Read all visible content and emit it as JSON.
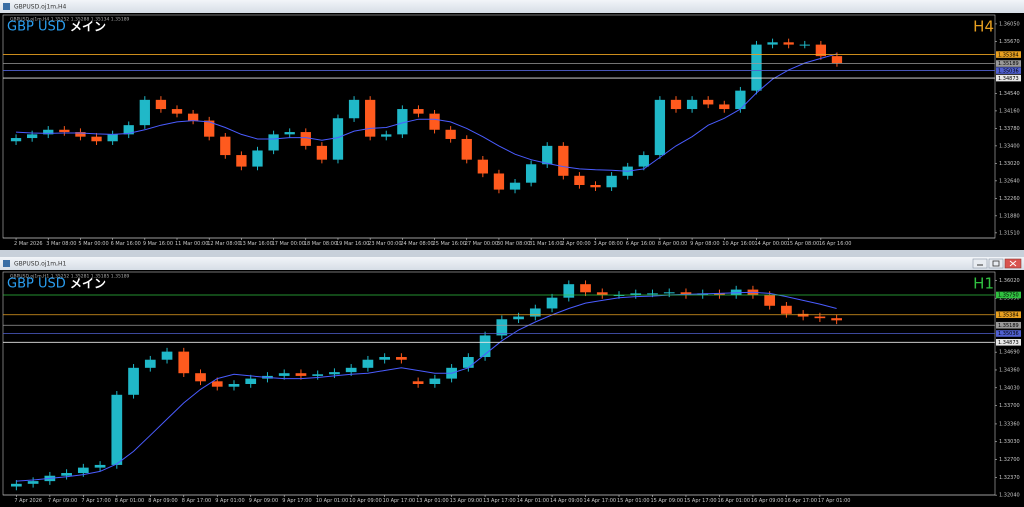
{
  "windows": [
    {
      "title": "GBPUSD.oj1m,H4"
    },
    {
      "title": "GBPUSD.oj1m,H1"
    }
  ],
  "chart_data": [
    {
      "type": "candlestick",
      "info": "GBPUSD.oj1m,H4  1.35252 1.35288 1.35134 1.35189",
      "symbol": "GBP USD",
      "subtitle": "メイン",
      "timeframe": "H4",
      "timeframe_color": "#e8a020",
      "bull_color": "#20b8c8",
      "bear_color": "#ff5a1e",
      "categories": [
        "2 Mar 2026",
        null,
        "3 Mar 08:00",
        null,
        "5 Mar 00:00",
        null,
        "6 Mar 16:00",
        null,
        "9 Mar 16:00",
        null,
        "11 Mar 00:00",
        null,
        "12 Mar 08:00",
        null,
        "13 Mar 16:00",
        null,
        "17 Mar 00:00",
        null,
        "18 Mar 08:00",
        null,
        "19 Mar 16:00",
        null,
        "23 Mar 00:00",
        null,
        "24 Mar 08:00",
        null,
        "25 Mar 16:00",
        null,
        "27 Mar 00:00",
        null,
        "30 Mar 08:00",
        null,
        "31 Mar 16:00",
        null,
        "2 Apr 00:00",
        null,
        "3 Apr 08:00",
        null,
        "6 Apr 16:00",
        null,
        "8 Apr 00:00",
        null,
        "9 Apr 08:00",
        null,
        "10 Apr 16:00",
        null,
        "14 Apr 00:00",
        null,
        "15 Apr 08:00",
        null,
        "16 Apr 16:00",
        null
      ],
      "open": [
        1.335,
        1.3357,
        1.3365,
        1.3375,
        1.337,
        1.336,
        1.335,
        1.3365,
        1.3385,
        1.344,
        1.342,
        1.341,
        1.3395,
        1.336,
        1.332,
        1.3295,
        1.333,
        1.3365,
        1.337,
        1.334,
        1.331,
        1.34,
        1.344,
        1.336,
        1.3365,
        1.342,
        1.341,
        1.3375,
        1.3355,
        1.331,
        1.328,
        1.3245,
        1.326,
        1.33,
        1.334,
        1.3275,
        1.3255,
        1.325,
        1.3275,
        1.3295,
        1.332,
        1.344,
        1.342,
        1.344,
        1.343,
        1.342,
        1.346,
        1.356,
        1.3565,
        1.356,
        1.356,
        1.3535
      ],
      "high": [
        1.3365,
        1.3373,
        1.3383,
        1.3383,
        1.3378,
        1.3368,
        1.3373,
        1.3393,
        1.3448,
        1.3448,
        1.3428,
        1.3418,
        1.3403,
        1.3368,
        1.3328,
        1.3338,
        1.3373,
        1.3378,
        1.3378,
        1.3348,
        1.3408,
        1.3448,
        1.3448,
        1.3373,
        1.3428,
        1.3428,
        1.3418,
        1.3383,
        1.3363,
        1.3318,
        1.3288,
        1.3268,
        1.3308,
        1.3348,
        1.3348,
        1.3283,
        1.3263,
        1.3283,
        1.3303,
        1.3328,
        1.3448,
        1.3448,
        1.3448,
        1.3448,
        1.3438,
        1.3468,
        1.3568,
        1.3573,
        1.3573,
        1.3568,
        1.3568,
        1.3543
      ],
      "low": [
        1.3342,
        1.3349,
        1.3357,
        1.3362,
        1.3352,
        1.3342,
        1.3342,
        1.3357,
        1.3377,
        1.3412,
        1.3402,
        1.3387,
        1.3352,
        1.3312,
        1.3287,
        1.3287,
        1.3322,
        1.3357,
        1.3332,
        1.3302,
        1.3302,
        1.3392,
        1.3352,
        1.3352,
        1.3357,
        1.3402,
        1.3367,
        1.3347,
        1.3302,
        1.3272,
        1.3237,
        1.3237,
        1.3252,
        1.3292,
        1.3267,
        1.3247,
        1.3242,
        1.3242,
        1.3267,
        1.3287,
        1.3312,
        1.3412,
        1.3412,
        1.3422,
        1.3412,
        1.3412,
        1.3452,
        1.3552,
        1.3552,
        1.3552,
        1.3527,
        1.3512
      ],
      "close": [
        1.3357,
        1.3365,
        1.3375,
        1.337,
        1.336,
        1.335,
        1.3365,
        1.3385,
        1.344,
        1.342,
        1.341,
        1.3395,
        1.336,
        1.332,
        1.3295,
        1.333,
        1.3365,
        1.337,
        1.334,
        1.331,
        1.34,
        1.344,
        1.336,
        1.3365,
        1.342,
        1.341,
        1.3375,
        1.3355,
        1.331,
        1.328,
        1.3245,
        1.326,
        1.33,
        1.334,
        1.3275,
        1.3255,
        1.325,
        1.3275,
        1.3295,
        1.332,
        1.344,
        1.342,
        1.344,
        1.343,
        1.342,
        1.346,
        1.356,
        1.3565,
        1.356,
        1.356,
        1.3535,
        1.352
      ],
      "ma": {
        "color": "#4a5cff",
        "values": [
          1.337,
          1.3368,
          1.3367,
          1.3368,
          1.3368,
          1.3366,
          1.3365,
          1.3367,
          1.3375,
          1.3385,
          1.3392,
          1.3395,
          1.3392,
          1.338,
          1.3365,
          1.3355,
          1.3355,
          1.3358,
          1.3358,
          1.3352,
          1.3358,
          1.3372,
          1.3378,
          1.338,
          1.339,
          1.3398,
          1.3398,
          1.3392,
          1.3378,
          1.336,
          1.334,
          1.3322,
          1.331,
          1.3302,
          1.3295,
          1.329,
          1.3288,
          1.3287,
          1.3285,
          1.329,
          1.3315,
          1.334,
          1.336,
          1.3385,
          1.34,
          1.342,
          1.3455,
          1.3485,
          1.3505,
          1.352,
          1.353,
          1.354
        ]
      },
      "levels": [
        {
          "value": 1.35384,
          "color": "#e8a020"
        },
        {
          "value": 1.35189,
          "color": "#9a9a9a"
        },
        {
          "value": 1.35036,
          "color": "#5060d0"
        },
        {
          "value": 1.34873,
          "color": "#e8e8e8"
        }
      ],
      "ylim": [
        1.3142,
        1.362
      ],
      "yticks": [
        {
          "value": 1.3605,
          "label": "1.36050"
        },
        {
          "value": 1.3567,
          "label": "1.35670"
        },
        {
          "value": 1.3454,
          "label": "1.34540"
        },
        {
          "value": 1.3416,
          "label": "1.34160"
        },
        {
          "value": 1.3378,
          "label": "1.33780"
        },
        {
          "value": 1.334,
          "label": "1.33400"
        },
        {
          "value": 1.3302,
          "label": "1.33020"
        },
        {
          "value": 1.3264,
          "label": "1.32640"
        },
        {
          "value": 1.3226,
          "label": "1.32260"
        },
        {
          "value": 1.3188,
          "label": "1.31880"
        },
        {
          "value": 1.3151,
          "label": "1.31510"
        }
      ]
    },
    {
      "type": "candlestick",
      "info": "GBPUSD.oj1m,H1  1.35252 1.35281 1.35185 1.35189",
      "symbol": "GBP USD",
      "subtitle": "メイン",
      "timeframe": "H1",
      "timeframe_color": "#30c040",
      "bull_color": "#20b8c8",
      "bear_color": "#ff5a1e",
      "categories": [
        "7 Apr 2026",
        null,
        "7 Apr 09:00",
        null,
        "7 Apr 17:00",
        null,
        "8 Apr 01:00",
        null,
        "8 Apr 09:00",
        null,
        "8 Apr 17:00",
        null,
        "9 Apr 01:00",
        null,
        "9 Apr 09:00",
        null,
        "9 Apr 17:00",
        null,
        "10 Apr 01:00",
        null,
        "10 Apr 09:00",
        null,
        "10 Apr 17:00",
        null,
        "13 Apr 01:00",
        null,
        "13 Apr 09:00",
        null,
        "13 Apr 17:00",
        null,
        "14 Apr 01:00",
        null,
        "14 Apr 09:00",
        null,
        "14 Apr 17:00",
        null,
        "15 Apr 01:00",
        null,
        "15 Apr 09:00",
        null,
        "15 Apr 17:00",
        null,
        "16 Apr 01:00",
        null,
        "16 Apr 09:00",
        null,
        "16 Apr 17:00",
        null,
        "17 Apr 01:00",
        null
      ],
      "open": [
        1.322,
        1.3225,
        1.323,
        1.324,
        1.3245,
        1.3255,
        1.326,
        1.339,
        1.344,
        1.3455,
        1.347,
        1.343,
        1.3415,
        1.3405,
        1.341,
        1.342,
        1.3425,
        1.343,
        1.3425,
        1.3428,
        1.3432,
        1.344,
        1.3455,
        1.346,
        1.3415,
        1.341,
        1.342,
        1.344,
        1.346,
        1.35,
        1.353,
        1.3535,
        1.355,
        1.357,
        1.3595,
        1.358,
        1.3575,
        1.3575,
        1.3578,
        1.3578,
        1.358,
        1.3575,
        1.3578,
        1.3575,
        1.3585,
        1.3575,
        1.3555,
        1.354,
        1.3535,
        1.3532
      ],
      "high": [
        1.3232,
        1.3237,
        1.3247,
        1.3252,
        1.3262,
        1.3267,
        1.3397,
        1.3447,
        1.3462,
        1.3477,
        1.3477,
        1.3437,
        1.3422,
        1.3417,
        1.3427,
        1.3432,
        1.3437,
        1.3437,
        1.3435,
        1.3439,
        1.3447,
        1.3462,
        1.3467,
        1.3467,
        1.3422,
        1.3427,
        1.3447,
        1.3467,
        1.3507,
        1.3537,
        1.3542,
        1.3557,
        1.3577,
        1.3602,
        1.3602,
        1.3587,
        1.3582,
        1.3585,
        1.3585,
        1.3587,
        1.3587,
        1.3585,
        1.3585,
        1.3592,
        1.3592,
        1.3582,
        1.3562,
        1.3547,
        1.3542,
        1.3539
      ],
      "low": [
        1.3213,
        1.3218,
        1.3223,
        1.3233,
        1.3238,
        1.3248,
        1.3253,
        1.3383,
        1.3433,
        1.3448,
        1.3423,
        1.3408,
        1.3398,
        1.3398,
        1.3403,
        1.3413,
        1.3418,
        1.3418,
        1.3418,
        1.3421,
        1.3425,
        1.3433,
        1.3448,
        1.3448,
        1.3403,
        1.3403,
        1.3413,
        1.3433,
        1.3453,
        1.3493,
        1.3523,
        1.3528,
        1.3543,
        1.3563,
        1.3573,
        1.3568,
        1.3568,
        1.3568,
        1.3571,
        1.3571,
        1.3568,
        1.3568,
        1.3568,
        1.3568,
        1.3568,
        1.3548,
        1.3533,
        1.3528,
        1.3525,
        1.3521
      ],
      "close": [
        1.3225,
        1.323,
        1.324,
        1.3245,
        1.3255,
        1.326,
        1.339,
        1.344,
        1.3455,
        1.347,
        1.343,
        1.3415,
        1.3405,
        1.341,
        1.342,
        1.3425,
        1.343,
        1.3425,
        1.3428,
        1.3432,
        1.344,
        1.3455,
        1.346,
        1.3455,
        1.341,
        1.342,
        1.344,
        1.346,
        1.35,
        1.353,
        1.3535,
        1.355,
        1.357,
        1.3595,
        1.358,
        1.3575,
        1.3575,
        1.3578,
        1.3578,
        1.358,
        1.3575,
        1.3578,
        1.3575,
        1.3585,
        1.3575,
        1.3555,
        1.354,
        1.3535,
        1.3532,
        1.3528
      ],
      "ma": {
        "color": "#4a5cff",
        "values": [
          1.323,
          1.3232,
          1.3235,
          1.3238,
          1.3242,
          1.3248,
          1.3262,
          1.3285,
          1.3315,
          1.3345,
          1.3375,
          1.34,
          1.342,
          1.3428,
          1.3425,
          1.3422,
          1.342,
          1.342,
          1.3422,
          1.3425,
          1.3428,
          1.343,
          1.3435,
          1.344,
          1.3435,
          1.343,
          1.343,
          1.344,
          1.3465,
          1.349,
          1.351,
          1.3525,
          1.3538,
          1.355,
          1.356,
          1.3565,
          1.357,
          1.3572,
          1.3573,
          1.3575,
          1.3576,
          1.3577,
          1.3578,
          1.3579,
          1.358,
          1.3578,
          1.3572,
          1.3565,
          1.3558,
          1.355
        ]
      },
      "levels": [
        {
          "value": 1.3575,
          "label": "1.35750",
          "color": "#30c040"
        },
        {
          "value": 1.35384,
          "color": "#e8a020"
        },
        {
          "value": 1.35189,
          "color": "#9a9a9a"
        },
        {
          "value": 1.35036,
          "color": "#5060d0"
        },
        {
          "value": 1.34873,
          "color": "#e8e8e8"
        }
      ],
      "ylim": [
        1.3195,
        1.3625
      ],
      "yticks": [
        {
          "value": 1.3602,
          "label": "1.36020"
        },
        {
          "value": 1.3569,
          "label": "1.35690"
        },
        {
          "value": 1.3469,
          "label": "1.34690"
        },
        {
          "value": 1.3436,
          "label": "1.34360"
        },
        {
          "value": 1.3403,
          "label": "1.34030"
        },
        {
          "value": 1.337,
          "label": "1.33700"
        },
        {
          "value": 1.3336,
          "label": "1.33360"
        },
        {
          "value": 1.3303,
          "label": "1.33030"
        },
        {
          "value": 1.327,
          "label": "1.32700"
        },
        {
          "value": 1.3237,
          "label": "1.32370"
        },
        {
          "value": 1.3204,
          "label": "1.32040"
        }
      ]
    }
  ]
}
